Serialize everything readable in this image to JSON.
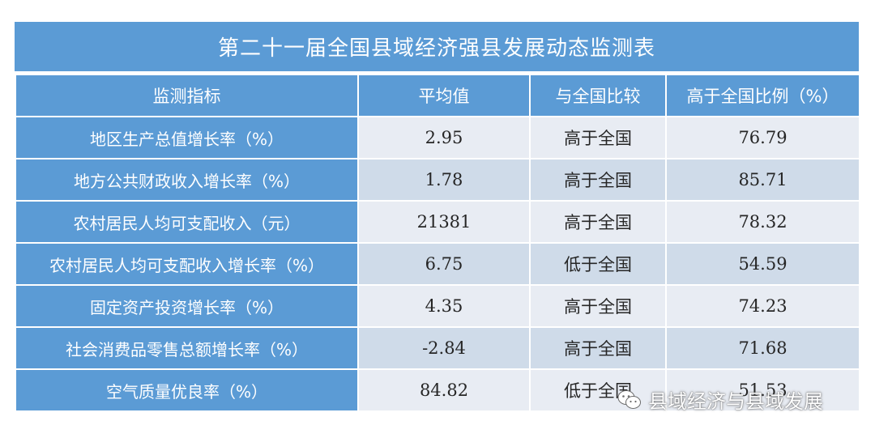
{
  "title": "第二十一届全国县域经济强县发展动态监测表",
  "headers": [
    "监测指标",
    "平均值",
    "与全国比较",
    "高于全国比例（%）"
  ],
  "rows": [
    {
      "indicator": "地区生产总值增长率（%）",
      "average": "2.95",
      "comparison": "高于全国",
      "ratio": "76.79"
    },
    {
      "indicator": "地方公共财政收入增长率（%）",
      "average": "1.78",
      "comparison": "高于全国",
      "ratio": "85.71"
    },
    {
      "indicator": "农村居民人均可支配收入（元）",
      "average": "21381",
      "comparison": "高于全国",
      "ratio": "78.32"
    },
    {
      "indicator": "农村居民人均可支配收入增长率（%）",
      "average": "6.75",
      "comparison": "低于全国",
      "ratio": "54.59"
    },
    {
      "indicator": "固定资产投资增长率（%）",
      "average": "4.35",
      "comparison": "高于全国",
      "ratio": "74.23"
    },
    {
      "indicator": "社会消费品零售总额增长率（%）",
      "average": "-2.84",
      "comparison": "高于全国",
      "ratio": "71.68"
    },
    {
      "indicator": "空气质量优良率（%）",
      "average": "84.82",
      "comparison": "低于全国",
      "ratio": "51.53"
    }
  ],
  "watermark": {
    "text": "县域经济与县域发展",
    "icon": "wechat-icon"
  }
}
